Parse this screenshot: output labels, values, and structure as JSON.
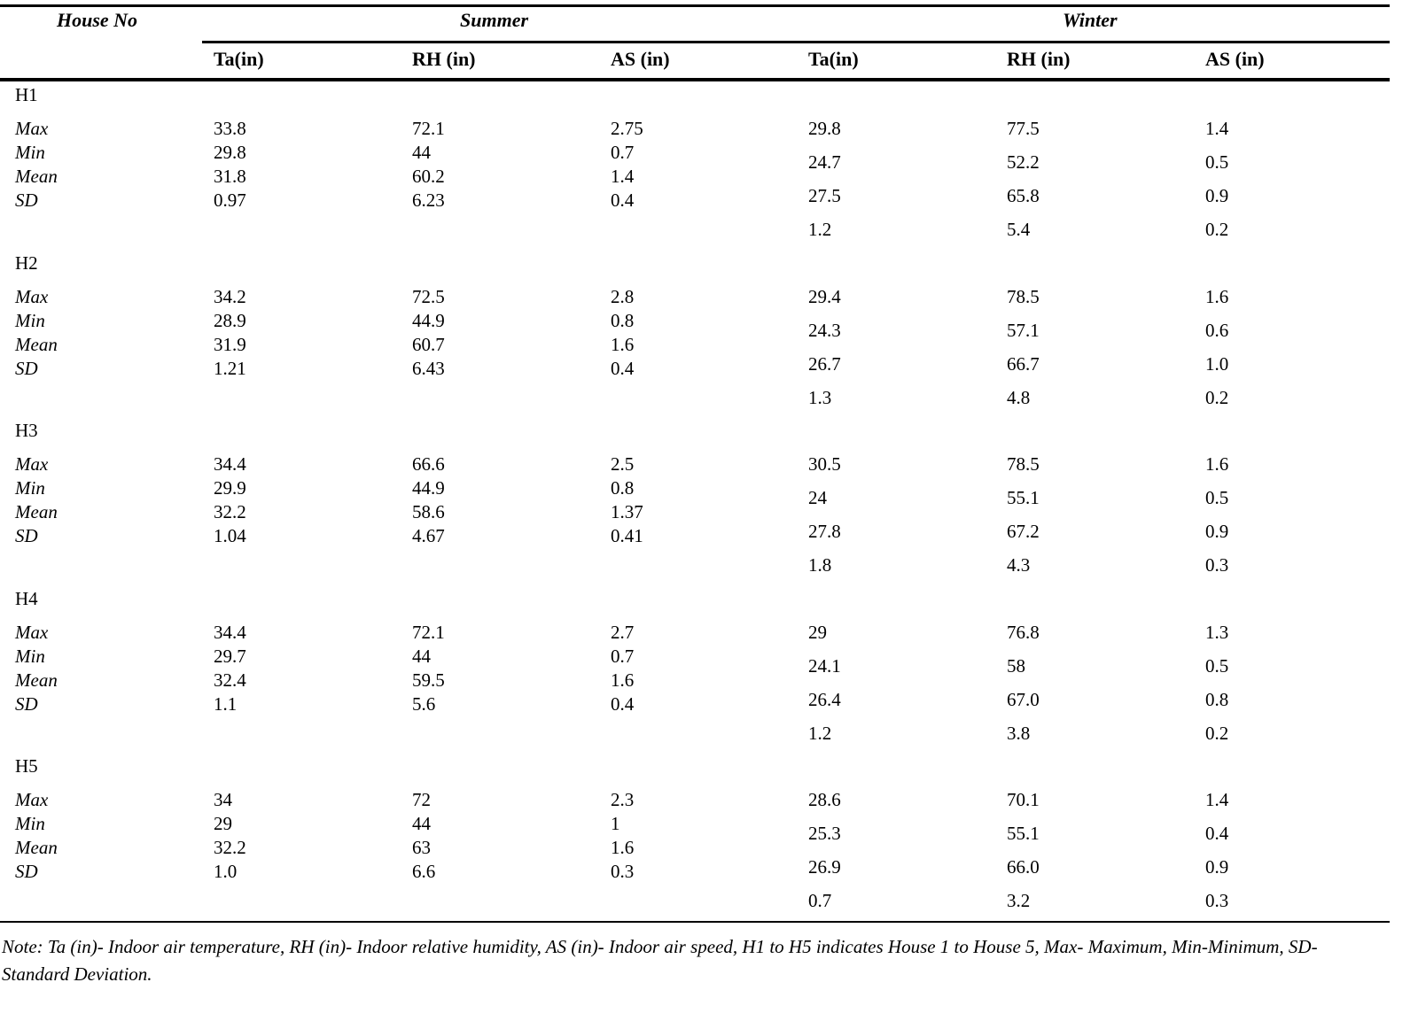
{
  "header": {
    "house_no": "House No",
    "summer": "Summer",
    "winter": "Winter",
    "columns": [
      "Ta(in)",
      "RH (in)",
      "AS (in)",
      "Ta(in)",
      "RH (in)",
      "AS (in)"
    ]
  },
  "stat_labels": [
    "Max",
    "Min",
    "Mean",
    "SD"
  ],
  "houses": [
    {
      "name": "H1",
      "summer": [
        [
          "33.8",
          "72.1",
          "2.75"
        ],
        [
          "29.8",
          "44",
          "0.7"
        ],
        [
          "31.8",
          "60.2",
          "1.4"
        ],
        [
          "0.97",
          "6.23",
          "0.4"
        ]
      ],
      "winter": [
        [
          "29.8",
          "77.5",
          "1.4"
        ],
        [
          "24.7",
          "52.2",
          "0.5"
        ],
        [
          "27.5",
          "65.8",
          "0.9"
        ],
        [
          "1.2",
          "5.4",
          "0.2"
        ]
      ]
    },
    {
      "name": "H2",
      "summer": [
        [
          "34.2",
          "72.5",
          "2.8"
        ],
        [
          "28.9",
          "44.9",
          "0.8"
        ],
        [
          "31.9",
          "60.7",
          "1.6"
        ],
        [
          "1.21",
          "6.43",
          "0.4"
        ]
      ],
      "winter": [
        [
          "29.4",
          "78.5",
          "1.6"
        ],
        [
          "24.3",
          "57.1",
          "0.6"
        ],
        [
          "26.7",
          "66.7",
          "1.0"
        ],
        [
          "1.3",
          "4.8",
          "0.2"
        ]
      ]
    },
    {
      "name": "H3",
      "summer": [
        [
          "34.4",
          "66.6",
          "2.5"
        ],
        [
          "29.9",
          "44.9",
          "0.8"
        ],
        [
          "32.2",
          "58.6",
          "1.37"
        ],
        [
          "1.04",
          "4.67",
          "0.41"
        ]
      ],
      "winter": [
        [
          "30.5",
          "78.5",
          "1.6"
        ],
        [
          "24",
          "55.1",
          "0.5"
        ],
        [
          "27.8",
          "67.2",
          "0.9"
        ],
        [
          "1.8",
          "4.3",
          "0.3"
        ]
      ]
    },
    {
      "name": "H4",
      "summer": [
        [
          "34.4",
          "72.1",
          "2.7"
        ],
        [
          "29.7",
          "44",
          "0.7"
        ],
        [
          "32.4",
          "59.5",
          "1.6"
        ],
        [
          "1.1",
          "5.6",
          "0.4"
        ]
      ],
      "winter": [
        [
          "29",
          "76.8",
          "1.3"
        ],
        [
          "24.1",
          "58",
          "0.5"
        ],
        [
          "26.4",
          "67.0",
          "0.8"
        ],
        [
          "1.2",
          "3.8",
          "0.2"
        ]
      ]
    },
    {
      "name": "H5",
      "summer": [
        [
          "34",
          "72",
          "2.3"
        ],
        [
          "29",
          "44",
          "1"
        ],
        [
          "32.2",
          "63",
          "1.6"
        ],
        [
          "1.0",
          "6.6",
          "0.3"
        ]
      ],
      "winter": [
        [
          "28.6",
          "70.1",
          "1.4"
        ],
        [
          "25.3",
          "55.1",
          "0.4"
        ],
        [
          "26.9",
          "66.0",
          "0.9"
        ],
        [
          "0.7",
          "3.2",
          "0.3"
        ]
      ]
    }
  ],
  "note": "Note: Ta (in)- Indoor air temperature, RH (in)- Indoor relative humidity, AS (in)- Indoor air speed, H1 to H5 indicates House 1 to House 5, Max- Maximum, Min-Minimum, SD- Standard Deviation."
}
